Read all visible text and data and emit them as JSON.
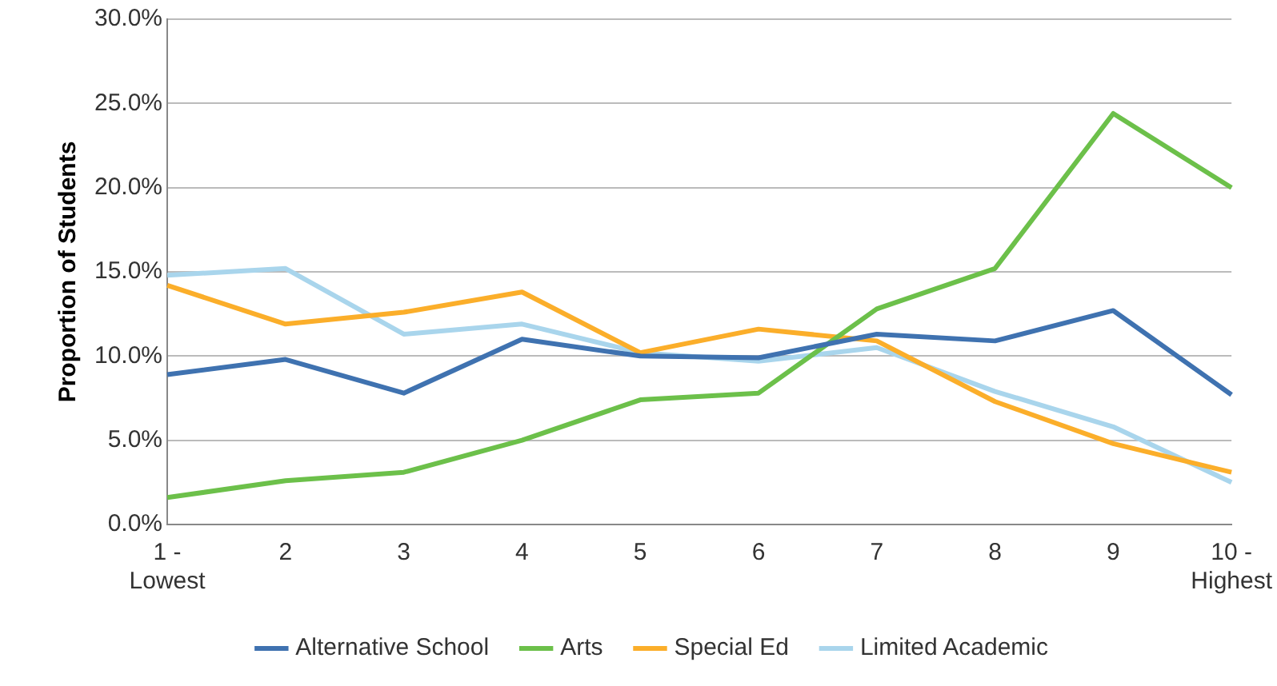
{
  "chart_data": {
    "type": "line",
    "ylabel": "Proportion of Students",
    "categories": [
      "1 - Lowest",
      "2",
      "3",
      "4",
      "5",
      "6",
      "7",
      "8",
      "9",
      "10 - Highest"
    ],
    "series": [
      {
        "name": "Alternative School",
        "color": "#3f72b0",
        "values": [
          8.9,
          9.8,
          7.8,
          11.0,
          10.0,
          9.9,
          11.3,
          10.9,
          12.7,
          7.7
        ]
      },
      {
        "name": "Arts",
        "color": "#6cc04a",
        "values": [
          1.6,
          2.6,
          3.1,
          5.0,
          7.4,
          7.8,
          12.8,
          15.2,
          24.4,
          20.0
        ]
      },
      {
        "name": "Special Ed",
        "color": "#fbae2a",
        "values": [
          14.2,
          11.9,
          12.6,
          13.8,
          10.2,
          11.6,
          10.9,
          7.3,
          4.8,
          3.1
        ]
      },
      {
        "name": "Limited Academic",
        "color": "#a9d5ec",
        "values": [
          14.8,
          15.2,
          11.3,
          11.9,
          10.2,
          9.7,
          10.5,
          7.9,
          5.8,
          2.5
        ]
      }
    ],
    "ylim": [
      0,
      30
    ],
    "yticks": [
      {
        "value": 0,
        "label": "0.0%"
      },
      {
        "value": 5,
        "label": "5.0%"
      },
      {
        "value": 10,
        "label": "10.0%"
      },
      {
        "value": 15,
        "label": "15.0%"
      },
      {
        "value": 20,
        "label": "20.0%"
      },
      {
        "value": 25,
        "label": "25.0%"
      },
      {
        "value": 30,
        "label": "30.0%"
      }
    ],
    "grid": "y",
    "legend": "bottom",
    "marker": "none",
    "line_style": "solid"
  }
}
